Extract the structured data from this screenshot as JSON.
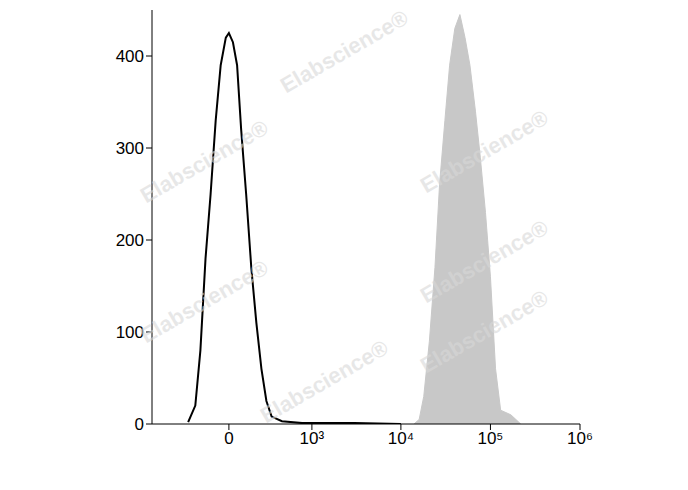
{
  "chart_data": {
    "type": "area",
    "annotations": [
      "Elabscience®"
    ],
    "xlim": [
      -850,
      1000000
    ],
    "xticks": [
      0,
      {
        "value": 1000,
        "label": "10³"
      },
      {
        "value": 10000,
        "label": "10⁴"
      },
      {
        "value": 100000,
        "label": "10⁵"
      },
      {
        "value": 1000000,
        "label": "10⁶"
      }
    ],
    "ylim": [
      0,
      450
    ],
    "yticks": [
      0,
      100,
      200,
      300,
      400
    ],
    "grid": false,
    "series": [
      {
        "type": "area",
        "color": "#c8c8c8",
        "x": [
          14000,
          16000,
          18000,
          20800,
          24000,
          27000,
          31000,
          35000,
          40000,
          45600,
          52000,
          59000,
          68000,
          77000,
          88000,
          100000,
          114000,
          130000,
          169000,
          218000
        ],
        "values": [
          0,
          5,
          30,
          90,
          170,
          260,
          330,
          390,
          430,
          445,
          420,
          390,
          340,
          290,
          230,
          160,
          60,
          15,
          10,
          0
        ]
      },
      {
        "type": "line",
        "color": "#000000",
        "x": [
          -300,
          -234,
          -192,
          -153,
          -117,
          -83,
          -51,
          -19,
          0,
          25,
          51,
          77,
          110,
          146,
          184,
          225,
          269,
          320,
          439,
          770,
          3000,
          10000
        ],
        "values": [
          2,
          20,
          80,
          180,
          250,
          330,
          390,
          420,
          425,
          415,
          390,
          320,
          250,
          170,
          110,
          60,
          25,
          8,
          3,
          1,
          1,
          0
        ]
      }
    ]
  }
}
